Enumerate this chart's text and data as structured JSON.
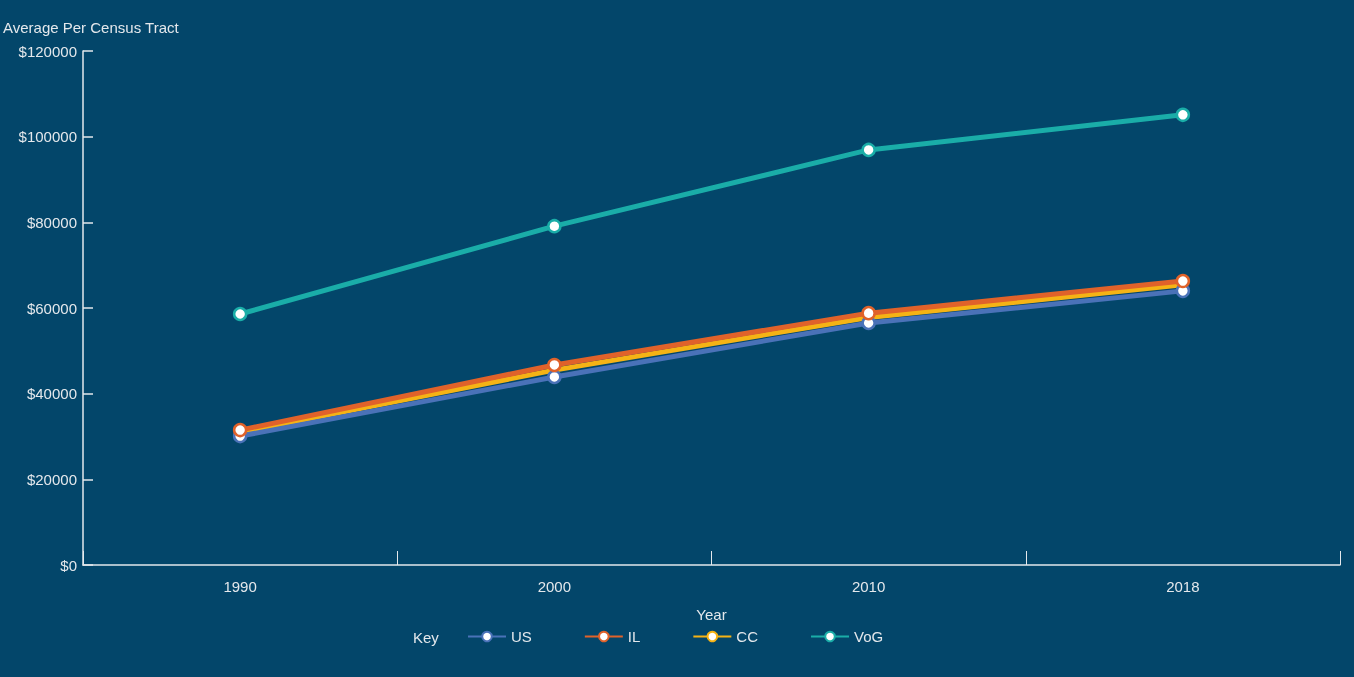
{
  "chart_data": {
    "type": "line",
    "ylabel": "Average Per Census Tract",
    "xlabel": "Year",
    "legend_title": "Key",
    "legend": "bottom",
    "categories": [
      "1990",
      "2000",
      "2010",
      "2018"
    ],
    "series": [
      {
        "name": "US",
        "color": "#4a72b8",
        "marker": "circle",
        "values": [
          30100,
          43900,
          56500,
          64000
        ]
      },
      {
        "name": "IL",
        "color": "#e0622a",
        "marker": "circle",
        "values": [
          31500,
          46700,
          58800,
          66300
        ]
      },
      {
        "name": "CC",
        "color": "#f5b315",
        "marker": "none",
        "values": [
          31000,
          45500,
          57800,
          65400
        ]
      },
      {
        "name": "VoG",
        "color": "#1aada8",
        "marker": "circle",
        "values": [
          58600,
          79100,
          96900,
          105100
        ]
      }
    ],
    "ylim": [
      0,
      120000
    ],
    "yticks": [
      {
        "value": 0,
        "label": "$0"
      },
      {
        "value": 20000,
        "label": "$20000"
      },
      {
        "value": 40000,
        "label": "$40000"
      },
      {
        "value": 60000,
        "label": "$60000"
      },
      {
        "value": 80000,
        "label": "$80000"
      },
      {
        "value": 100000,
        "label": "$100000"
      },
      {
        "value": 120000,
        "label": "$120000"
      }
    ],
    "grid": false
  }
}
